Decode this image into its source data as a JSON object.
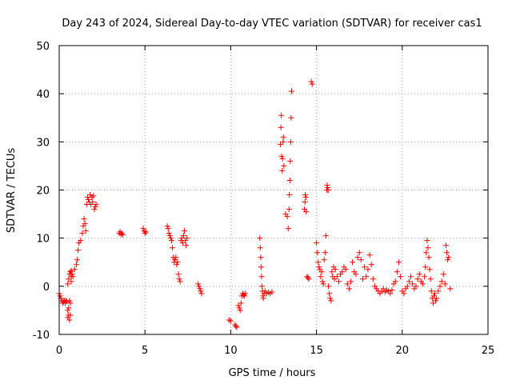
{
  "chart_data": {
    "type": "scatter",
    "title": "Day 243 of 2024, Sidereal Day-to-day VTEC variation (SDTVAR) for receiver cas1",
    "xlabel": "GPS time / hours",
    "ylabel": "SDTVAR / TECUs",
    "xlim": [
      0,
      25
    ],
    "ylim": [
      -10,
      50
    ],
    "xticks": [
      0,
      5,
      10,
      15,
      20,
      25
    ],
    "xtick_labels": [
      "0",
      "5",
      "10",
      "15",
      "20",
      "25"
    ],
    "yticks": [
      -10,
      0,
      10,
      20,
      30,
      40,
      50
    ],
    "ytick_labels": [
      "-10",
      "0",
      "10",
      "20",
      "30",
      "40",
      "50"
    ],
    "grid": true,
    "marker": "+",
    "color": "#ff0000",
    "series": [
      {
        "name": "cas1",
        "x": [
          0.0,
          0.05,
          0.1,
          0.15,
          0.2,
          0.25,
          0.3,
          0.35,
          0.4,
          0.45,
          0.5,
          0.5,
          0.5,
          0.55,
          0.55,
          0.55,
          0.6,
          0.6,
          0.6,
          0.65,
          0.65,
          0.65,
          0.7,
          0.7,
          0.7,
          0.75,
          0.8,
          0.9,
          1.0,
          1.05,
          1.1,
          1.15,
          1.25,
          1.35,
          1.4,
          1.45,
          1.5,
          1.55,
          1.6,
          1.65,
          1.7,
          1.75,
          1.8,
          1.85,
          1.9,
          1.95,
          2.0,
          2.05,
          2.1,
          2.15,
          3.5,
          3.55,
          3.6,
          3.65,
          3.7,
          4.9,
          4.95,
          5.0,
          5.05,
          6.3,
          6.35,
          6.4,
          6.45,
          6.5,
          6.55,
          6.6,
          6.65,
          6.7,
          6.75,
          6.8,
          6.85,
          6.9,
          6.95,
          7.0,
          7.05,
          7.1,
          7.15,
          7.2,
          7.25,
          7.3,
          7.35,
          7.4,
          7.45,
          8.1,
          8.15,
          8.2,
          8.25,
          8.3,
          9.9,
          10.0,
          10.25,
          10.3,
          10.35,
          10.45,
          10.5,
          10.55,
          10.6,
          10.65,
          10.7,
          10.75,
          10.8,
          10.85,
          11.7,
          11.72,
          11.75,
          11.77,
          11.8,
          11.82,
          11.85,
          11.88,
          11.9,
          11.95,
          12.0,
          12.1,
          12.2,
          12.3,
          12.4,
          12.9,
          12.93,
          12.95,
          12.97,
          13.0,
          13.02,
          13.05,
          13.07,
          13.1,
          13.2,
          13.3,
          13.35,
          13.4,
          13.42,
          13.45,
          13.47,
          13.5,
          13.52,
          13.55,
          14.3,
          14.33,
          14.35,
          14.38,
          14.4,
          14.45,
          14.5,
          14.55,
          14.7,
          14.75,
          15.0,
          15.05,
          15.1,
          15.15,
          15.2,
          15.25,
          15.3,
          15.35,
          15.4,
          15.45,
          15.5,
          15.55,
          15.6,
          15.62,
          15.65,
          15.68,
          15.7,
          15.75,
          15.8,
          15.85,
          15.9,
          15.95,
          16.0,
          16.05,
          16.1,
          16.2,
          16.3,
          16.4,
          16.5,
          16.6,
          16.7,
          16.8,
          16.9,
          17.0,
          17.1,
          17.2,
          17.3,
          17.4,
          17.5,
          17.6,
          17.7,
          17.8,
          17.9,
          18.0,
          18.1,
          18.2,
          18.3,
          18.4,
          18.5,
          18.6,
          18.7,
          18.8,
          18.9,
          19.0,
          19.1,
          19.2,
          19.3,
          19.4,
          19.5,
          19.6,
          19.7,
          19.8,
          19.9,
          20.0,
          20.1,
          20.2,
          20.3,
          20.4,
          20.5,
          20.6,
          20.7,
          20.8,
          20.9,
          21.0,
          21.1,
          21.2,
          21.3,
          21.35,
          21.4,
          21.45,
          21.5,
          21.55,
          21.6,
          21.65,
          21.7,
          21.75,
          21.8,
          21.85,
          21.9,
          21.95,
          22.0,
          22.1,
          22.2,
          22.3,
          22.4,
          22.5,
          22.55,
          22.6,
          22.65,
          22.7,
          22.8
        ],
        "y": [
          -1.5,
          -2.0,
          -2.5,
          -3.0,
          -3.5,
          -3.2,
          -3.0,
          -3.5,
          -3.0,
          -3.2,
          -5.0,
          -6.5,
          0.5,
          -4.5,
          -6.0,
          1.5,
          -3.0,
          -7.0,
          2.5,
          -3.5,
          -6.0,
          3.0,
          1.0,
          2.0,
          3.2,
          2.5,
          2.0,
          3.5,
          4.5,
          5.5,
          7.5,
          9.0,
          9.5,
          11.0,
          12.5,
          14.0,
          13.0,
          11.5,
          17.0,
          18.5,
          18.0,
          17.5,
          19.0,
          17.0,
          18.5,
          17.5,
          18.8,
          16.0,
          16.5,
          17.0,
          11.0,
          11.3,
          10.8,
          11.0,
          10.7,
          12.0,
          11.5,
          11.0,
          11.3,
          12.5,
          12.0,
          11.0,
          10.5,
          10.0,
          9.5,
          8.0,
          6.0,
          5.0,
          5.5,
          6.0,
          4.5,
          5.0,
          2.5,
          1.5,
          1.0,
          9.5,
          10.0,
          9.0,
          10.5,
          11.5,
          9.5,
          8.5,
          10.0,
          0.5,
          0.0,
          -0.5,
          -1.0,
          -1.5,
          -7.0,
          -7.2,
          -8.0,
          -8.3,
          -8.5,
          -4.0,
          -4.5,
          -5.0,
          -3.5,
          -2.0,
          -1.5,
          -1.8,
          -2.0,
          -1.5,
          10.0,
          8.0,
          6.0,
          4.0,
          2.0,
          0.0,
          -1.0,
          -2.0,
          -2.5,
          -1.5,
          -1.0,
          -1.5,
          -1.3,
          -1.5,
          -1.2,
          29.5,
          33.0,
          35.5,
          27.0,
          24.0,
          26.5,
          30.0,
          31.0,
          25.0,
          15.0,
          14.5,
          12.0,
          16.0,
          19.0,
          22.0,
          26.0,
          30.0,
          35.0,
          40.5,
          16.0,
          17.5,
          19.0,
          18.5,
          15.5,
          2.0,
          1.8,
          1.5,
          42.5,
          42.0,
          9.0,
          7.0,
          5.0,
          4.0,
          3.5,
          2.0,
          3.0,
          1.0,
          0.5,
          5.5,
          7.0,
          10.5,
          20.0,
          21.0,
          20.5,
          20.0,
          0.0,
          -1.5,
          -2.5,
          -3.0,
          3.0,
          2.0,
          4.0,
          1.5,
          3.5,
          2.0,
          1.0,
          2.5,
          3.0,
          4.0,
          3.5,
          0.5,
          -0.5,
          1.0,
          5.0,
          3.0,
          2.5,
          6.0,
          7.0,
          5.5,
          1.5,
          4.0,
          2.0,
          3.5,
          6.5,
          4.5,
          1.5,
          0.0,
          -0.5,
          -1.0,
          -1.5,
          -1.0,
          -0.5,
          -1.2,
          -0.8,
          -1.0,
          -1.5,
          -0.8,
          0.5,
          1.0,
          3.0,
          5.0,
          2.0,
          -1.0,
          -1.5,
          -0.5,
          0.0,
          1.0,
          2.0,
          0.5,
          -0.5,
          0.0,
          1.5,
          2.5,
          1.0,
          0.5,
          2.0,
          4.0,
          7.0,
          9.5,
          8.0,
          6.0,
          3.5,
          1.5,
          -1.0,
          -2.5,
          -3.5,
          -2.0,
          -1.5,
          -3.0,
          -2.5,
          -1.0,
          0.0,
          1.0,
          2.5,
          0.5,
          8.5,
          7.0,
          5.5,
          6.0,
          -0.5
        ]
      }
    ]
  }
}
